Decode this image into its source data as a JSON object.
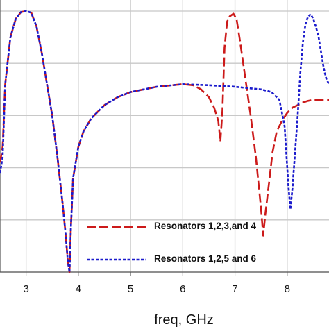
{
  "chart_data": {
    "type": "line",
    "title": "",
    "xlabel": "freq, GHz",
    "ylabel": "",
    "xlim": [
      2.5,
      8.8
    ],
    "ylim": [
      -50,
      0
    ],
    "grid": true,
    "legend_position": "lower-right",
    "x_ticks": [
      "3",
      "4",
      "5",
      "6",
      "7",
      "8"
    ],
    "series": [
      {
        "name": "Resonators 1,2,3,and 4",
        "color": "#cc1a1a",
        "dash": "dashed",
        "x": [
          2.5,
          2.55,
          2.6,
          2.7,
          2.8,
          2.9,
          3.0,
          3.1,
          3.2,
          3.3,
          3.4,
          3.5,
          3.6,
          3.7,
          3.75,
          3.8,
          3.83,
          3.86,
          3.9,
          4.0,
          4.1,
          4.25,
          4.5,
          4.75,
          5.0,
          5.5,
          6.0,
          6.2,
          6.35,
          6.5,
          6.6,
          6.68,
          6.72,
          6.76,
          6.8,
          6.85,
          6.9,
          6.97,
          7.03,
          7.1,
          7.2,
          7.3,
          7.4,
          7.5,
          7.54,
          7.58,
          7.65,
          7.72,
          7.8,
          7.9,
          8.0,
          8.1,
          8.2,
          8.3,
          8.4,
          8.5,
          8.6,
          8.7,
          8.8
        ],
        "y": [
          -29,
          -26,
          -14,
          -5,
          -1.5,
          -0.2,
          0,
          -0.3,
          -3,
          -8,
          -14,
          -20,
          -28,
          -37,
          -42,
          -48,
          -50,
          -41,
          -32,
          -26,
          -23,
          -20.5,
          -18,
          -16.5,
          -15.5,
          -14.5,
          -14,
          -14.2,
          -15,
          -16.5,
          -18.5,
          -21,
          -25,
          -19,
          -7,
          -2,
          -1,
          -0.5,
          -1.5,
          -6,
          -13,
          -20,
          -28,
          -38,
          -43,
          -39,
          -33,
          -27,
          -23,
          -21,
          -19.5,
          -18.5,
          -18,
          -17.5,
          -17.2,
          -17,
          -17,
          -17,
          -17
        ]
      },
      {
        "name": "Resonators 1,2,5 and 6",
        "color": "#1a1acc",
        "dash": "dotted",
        "x": [
          2.5,
          2.55,
          2.6,
          2.7,
          2.8,
          2.9,
          3.0,
          3.1,
          3.2,
          3.3,
          3.4,
          3.5,
          3.6,
          3.7,
          3.75,
          3.8,
          3.83,
          3.86,
          3.9,
          4.0,
          4.1,
          4.25,
          4.5,
          4.75,
          5.0,
          5.5,
          6.0,
          6.5,
          7.0,
          7.5,
          7.7,
          7.85,
          7.95,
          8.02,
          8.06,
          8.1,
          8.15,
          8.2,
          8.25,
          8.3,
          8.35,
          8.4,
          8.45,
          8.5,
          8.55,
          8.6,
          8.65,
          8.7,
          8.75,
          8.8
        ],
        "y": [
          -31,
          -28,
          -14,
          -5,
          -1.5,
          -0.2,
          0,
          -0.3,
          -3,
          -8,
          -14,
          -20,
          -28,
          -37,
          -42,
          -48,
          -50,
          -41,
          -32,
          -26,
          -23,
          -20.5,
          -18,
          -16.5,
          -15.5,
          -14.5,
          -14,
          -14.2,
          -14.5,
          -15,
          -15.5,
          -17,
          -22,
          -33,
          -38,
          -34,
          -27,
          -20,
          -12,
          -6,
          -2.5,
          -1,
          -0.6,
          -1.5,
          -3,
          -5,
          -8,
          -11,
          -13,
          -14
        ]
      }
    ]
  }
}
